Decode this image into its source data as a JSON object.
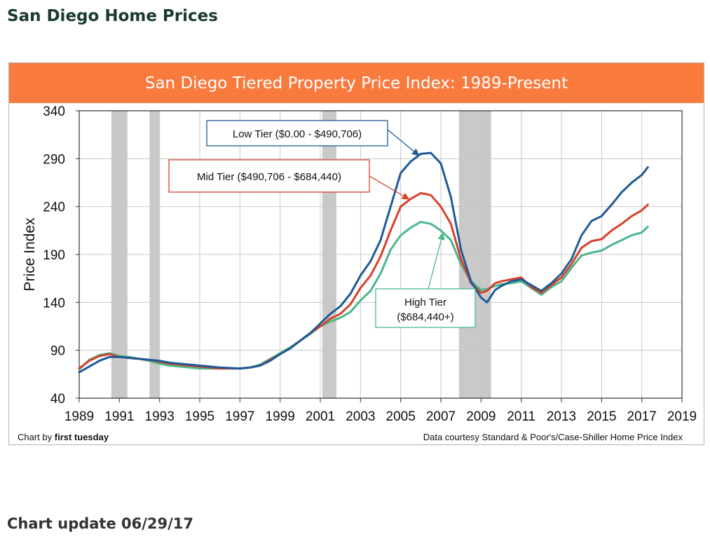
{
  "page": {
    "title": "San Diego Home Prices",
    "update": "Chart update 06/29/17"
  },
  "chart_data": {
    "type": "line",
    "title": "San Diego Tiered Property Price Index: 1989-Present",
    "xlabel": "",
    "ylabel": "Price Index",
    "xlim": [
      1989,
      2019
    ],
    "ylim": [
      40,
      340
    ],
    "x_ticks": [
      1989,
      1991,
      1993,
      1995,
      1997,
      1999,
      2001,
      2003,
      2005,
      2007,
      2009,
      2011,
      2013,
      2015,
      2017,
      2019
    ],
    "y_ticks": [
      40,
      90,
      140,
      190,
      240,
      290,
      340
    ],
    "grid": true,
    "recessions": [
      [
        1990.6,
        1991.4
      ],
      [
        1992.5,
        1993.0
      ],
      [
        2001.1,
        2001.8
      ],
      [
        2007.9,
        2009.5
      ]
    ],
    "colors": {
      "banner": "#f97a3d",
      "low": "#1f5a96",
      "mid": "#d8412a",
      "high": "#4bb78a",
      "recession": "#c9c9c9"
    },
    "annotations": [
      {
        "text": "Low Tier ($0.00 - $490,706)",
        "series": "low"
      },
      {
        "text": "Mid Tier ($490,706 - $684,440)",
        "series": "mid"
      },
      {
        "text": "High Tier",
        "text2": "($684,440+)",
        "series": "high"
      }
    ],
    "series": [
      {
        "id": "low",
        "x": [
          1989.0,
          1989.5,
          1990.0,
          1990.5,
          1991.0,
          1991.5,
          1992.0,
          1992.5,
          1993.0,
          1993.5,
          1994.0,
          1995.0,
          1996.0,
          1997.0,
          1997.5,
          1998.0,
          1998.5,
          1999.0,
          1999.5,
          2000.0,
          2000.5,
          2001.0,
          2001.5,
          2002.0,
          2002.5,
          2003.0,
          2003.5,
          2004.0,
          2004.5,
          2005.0,
          2005.5,
          2006.0,
          2006.5,
          2007.0,
          2007.5,
          2008.0,
          2008.5,
          2009.0,
          2009.3,
          2009.7,
          2010.0,
          2010.5,
          2011.0,
          2011.5,
          2012.0,
          2012.5,
          2013.0,
          2013.5,
          2014.0,
          2014.5,
          2015.0,
          2015.5,
          2016.0,
          2016.5,
          2017.0,
          2017.3
        ],
        "values": [
          67,
          73,
          79,
          83,
          83,
          82,
          81,
          80,
          79,
          77,
          76,
          74,
          72,
          71,
          72,
          74,
          79,
          86,
          92,
          100,
          108,
          118,
          128,
          136,
          149,
          168,
          183,
          205,
          240,
          275,
          287,
          295,
          296,
          285,
          250,
          195,
          162,
          145,
          140,
          153,
          157,
          162,
          164,
          158,
          152,
          160,
          170,
          185,
          210,
          225,
          230,
          242,
          255,
          265,
          273,
          281
        ]
      },
      {
        "id": "mid",
        "x": [
          1989.0,
          1989.5,
          1990.0,
          1990.5,
          1991.0,
          1991.5,
          1992.0,
          1992.5,
          1993.0,
          1993.5,
          1994.0,
          1995.0,
          1996.0,
          1997.0,
          1997.5,
          1998.0,
          1998.5,
          1999.0,
          1999.5,
          2000.0,
          2000.5,
          2001.0,
          2001.5,
          2002.0,
          2002.5,
          2003.0,
          2003.5,
          2004.0,
          2004.5,
          2005.0,
          2005.5,
          2006.0,
          2006.5,
          2007.0,
          2007.5,
          2008.0,
          2008.5,
          2009.0,
          2009.3,
          2009.7,
          2010.0,
          2010.5,
          2011.0,
          2011.5,
          2012.0,
          2012.5,
          2013.0,
          2013.5,
          2014.0,
          2014.5,
          2015.0,
          2015.5,
          2016.0,
          2016.5,
          2017.0,
          2017.3
        ],
        "values": [
          71,
          79,
          84,
          86,
          83,
          82,
          81,
          80,
          78,
          76,
          75,
          73,
          71,
          71,
          72,
          74,
          80,
          86,
          92,
          100,
          108,
          115,
          123,
          128,
          138,
          155,
          168,
          188,
          215,
          240,
          248,
          254,
          252,
          240,
          222,
          185,
          160,
          150,
          152,
          160,
          162,
          164,
          166,
          156,
          150,
          158,
          166,
          180,
          197,
          204,
          206,
          215,
          222,
          230,
          236,
          242
        ]
      },
      {
        "id": "high",
        "x": [
          1989.0,
          1989.5,
          1990.0,
          1990.5,
          1991.0,
          1991.5,
          1992.0,
          1992.5,
          1993.0,
          1993.5,
          1994.0,
          1995.0,
          1996.0,
          1997.0,
          1997.5,
          1998.0,
          1998.5,
          1999.0,
          1999.5,
          2000.0,
          2000.5,
          2001.0,
          2001.5,
          2002.0,
          2002.5,
          2003.0,
          2003.5,
          2004.0,
          2004.5,
          2005.0,
          2005.5,
          2006.0,
          2006.5,
          2007.0,
          2007.5,
          2008.0,
          2008.5,
          2009.0,
          2009.3,
          2009.7,
          2010.0,
          2010.5,
          2011.0,
          2011.5,
          2012.0,
          2012.5,
          2013.0,
          2013.5,
          2014.0,
          2014.5,
          2015.0,
          2015.5,
          2016.0,
          2016.5,
          2017.0,
          2017.3
        ],
        "values": [
          70,
          80,
          85,
          87,
          84,
          83,
          81,
          79,
          76,
          74,
          73,
          71,
          71,
          71,
          72,
          75,
          81,
          87,
          93,
          100,
          107,
          115,
          120,
          124,
          130,
          142,
          152,
          170,
          195,
          210,
          218,
          224,
          222,
          215,
          205,
          180,
          162,
          153,
          154,
          157,
          159,
          160,
          162,
          155,
          148,
          156,
          162,
          176,
          189,
          192,
          194,
          200,
          205,
          210,
          213,
          219
        ]
      }
    ]
  },
  "footer": {
    "left_prefix": "Chart by ",
    "left_bold": "first tuesday",
    "right": "Data courtesy Standard & Poor's/Case-Shiller Home Price Index"
  }
}
